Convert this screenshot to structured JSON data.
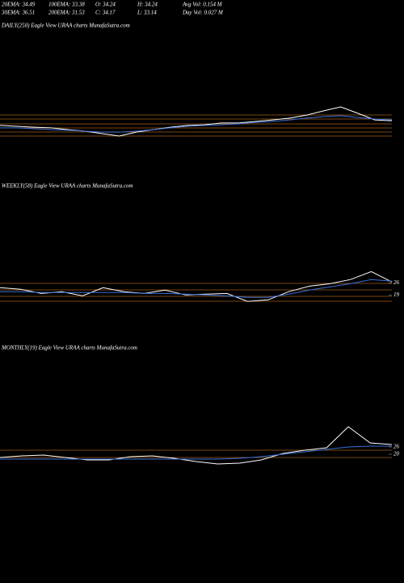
{
  "header": {
    "row1": [
      "20EMA: 34.49",
      "100EMA: 33.38",
      "O: 34.24",
      "H: 34.24",
      "Avg Vol: 0.154  M"
    ],
    "row2": [
      "30EMA: 36.51",
      "200EMA: 31.53",
      "C: 34.17",
      "L: 33.14",
      "Day Vol: 0.027 M"
    ]
  },
  "chart_data": [
    {
      "type": "line",
      "title": "DAILY(250) Eagle   View  URAA charts MunafaSutra.com",
      "ylim": [
        10,
        45
      ],
      "yticks": [],
      "series": [
        {
          "color": "#ffffff",
          "values": [
            31.5,
            31.0,
            30.5,
            30.1,
            29.1,
            28.2,
            26.8,
            25.4,
            27.7,
            29.1,
            30.5,
            31.5,
            31.9,
            32.9,
            32.9,
            33.8,
            34.7,
            35.7,
            37.5,
            39.9,
            42.2,
            38.5,
            34.7,
            34.2
          ]
        },
        {
          "color": "#3a6fd8",
          "values": [
            30.1,
            30.1,
            29.6,
            29.1,
            28.7,
            28.2,
            27.7,
            27.7,
            28.2,
            29.1,
            30.1,
            31.0,
            31.5,
            31.9,
            32.4,
            33.3,
            33.8,
            34.7,
            35.7,
            36.6,
            37.1,
            36.1,
            35.2,
            34.7
          ]
        }
      ]
    },
    {
      "type": "line",
      "title": "WEEKLY(58) Eagle   View  URAA charts MunafaSutra.com",
      "ylim": [
        10,
        40
      ],
      "yticks": [
        26,
        19
      ],
      "series": [
        {
          "color": "#ffffff",
          "values": [
            23.2,
            22.3,
            19.9,
            20.9,
            18.5,
            23.2,
            20.9,
            19.9,
            21.8,
            19,
            19.5,
            19.9,
            15.3,
            16.2,
            20.9,
            24.1,
            25.5,
            27.9,
            32.5,
            26.5
          ]
        },
        {
          "color": "#3a6fd8",
          "values": [
            20.9,
            20.9,
            20.4,
            20.4,
            20.4,
            20.4,
            20.4,
            19.9,
            19.9,
            19.5,
            19,
            18.5,
            17.6,
            17.6,
            19.5,
            21.8,
            23.7,
            25.5,
            27.9,
            27
          ]
        }
      ]
    },
    {
      "type": "line",
      "title": "MONTHLY(19) Eagle   View  URAA charts MunafaSutra.com",
      "ylim": [
        0,
        80
      ],
      "yticks": [
        26,
        20
      ],
      "series": [
        {
          "color": "#ffffff",
          "values": [
            17.3,
            18.7,
            19.3,
            17.3,
            15.3,
            15.3,
            18,
            18.7,
            16.7,
            14,
            12,
            12.7,
            15.3,
            20.7,
            23.3,
            25.3,
            42.7,
            29.3,
            28
          ]
        },
        {
          "color": "#3a6fd8",
          "values": [
            16,
            16,
            16,
            16,
            16,
            16,
            16,
            16,
            16,
            16,
            16,
            16.7,
            18,
            20,
            22,
            24,
            26,
            26.7,
            26.7
          ]
        }
      ]
    }
  ]
}
